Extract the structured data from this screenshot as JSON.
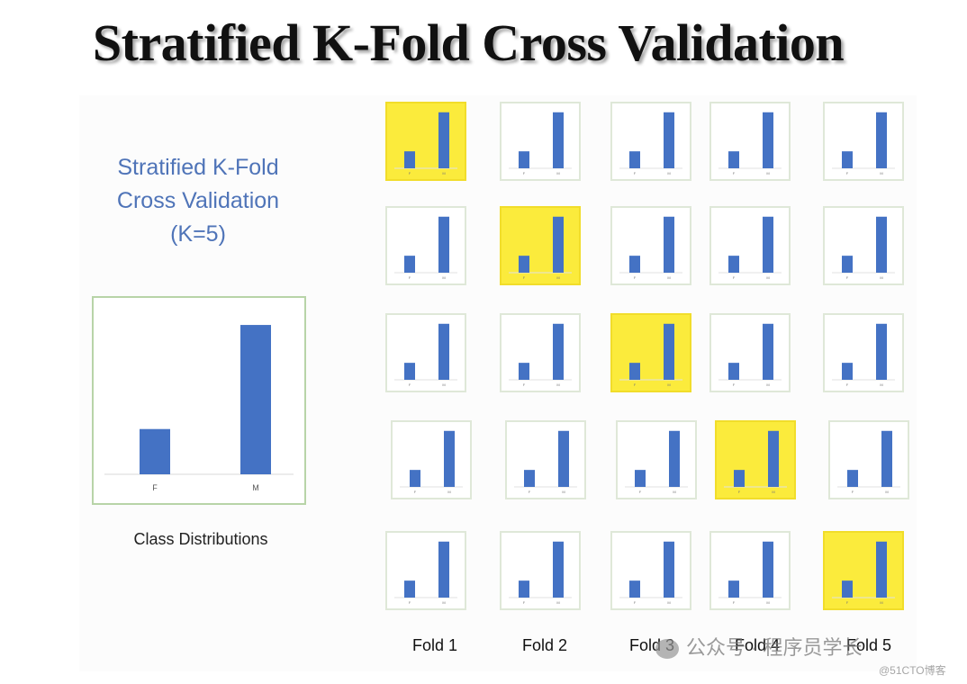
{
  "title": "Stratified K-Fold Cross Validation",
  "heading": [
    "Stratified K-Fold",
    "Cross Validation",
    "(K=5)"
  ],
  "class_caption": "Class Distributions",
  "colors": {
    "bar": "#4472c4",
    "test_fold": "#fbeb3c",
    "heading": "#4f74b8"
  },
  "chart_data": [
    {
      "type": "bar",
      "title": "Class Distributions",
      "categories": [
        "F",
        "M"
      ],
      "values": [
        1,
        3.3
      ],
      "xlabel": "",
      "ylabel": "",
      "ylim": [
        0,
        3.5
      ]
    },
    {
      "type": "grid_of_bar",
      "description_label": "Stratified K-Fold (K=5)",
      "columns": [
        "Fold 1",
        "Fold 2",
        "Fold 3",
        "Fold 4",
        "Fold 5"
      ],
      "rows": 5,
      "categories": [
        "F",
        "M"
      ],
      "values_per_cell": [
        1,
        3.3
      ],
      "test_cells": [
        [
          0,
          0
        ],
        [
          1,
          1
        ],
        [
          2,
          2
        ],
        [
          3,
          3
        ],
        [
          4,
          4
        ]
      ]
    }
  ],
  "folds": [
    "Fold 1",
    "Fold 2",
    "Fold 3",
    "Fold 4",
    "Fold 5"
  ],
  "watermark": {
    "main": "公众号 · 程序员学长",
    "sub": "@51CTO博客"
  }
}
